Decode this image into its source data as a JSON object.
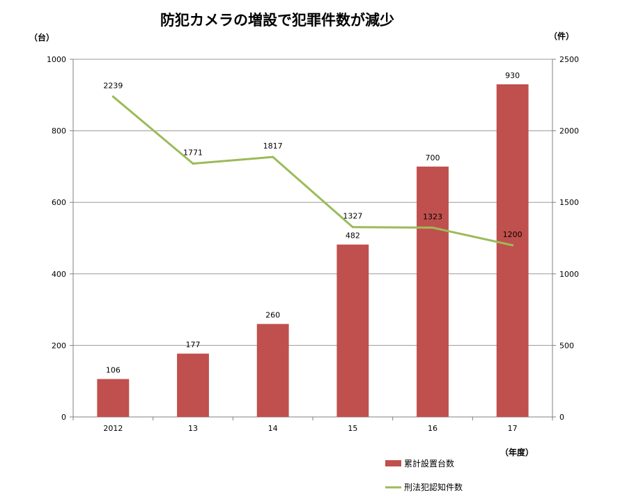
{
  "chart_data": {
    "type": "bar",
    "title": "防犯カメラの増設で犯罪件数が減少",
    "categories": [
      "2012",
      "13",
      "14",
      "15",
      "16",
      "17"
    ],
    "xlabel": "（年度）",
    "ylabel": "（台）",
    "ylabel_right": "（件）",
    "ylim": [
      0,
      1000
    ],
    "yticks": [
      "0",
      "200",
      "400",
      "600",
      "800",
      "1000"
    ],
    "ylim_right": [
      0,
      2500
    ],
    "yticks_right": [
      "0",
      "500",
      "1000",
      "1500",
      "2000",
      "2500"
    ],
    "grid": true,
    "legend_position": "bottom-right",
    "series": [
      {
        "name": "累計設置台数",
        "type": "bar",
        "axis": "left",
        "color": "#C0504D",
        "values": [
          106,
          177,
          260,
          482,
          700,
          930
        ],
        "labels": [
          "106",
          "177",
          "260",
          "482",
          "700",
          "930"
        ]
      },
      {
        "name": "刑法犯認知件数",
        "type": "line",
        "axis": "right",
        "color": "#9BBB59",
        "values": [
          2239,
          1771,
          1817,
          1327,
          1323,
          1200
        ],
        "labels": [
          "2239",
          "1771",
          "1817",
          "1327",
          "1323",
          "1200"
        ]
      }
    ]
  }
}
